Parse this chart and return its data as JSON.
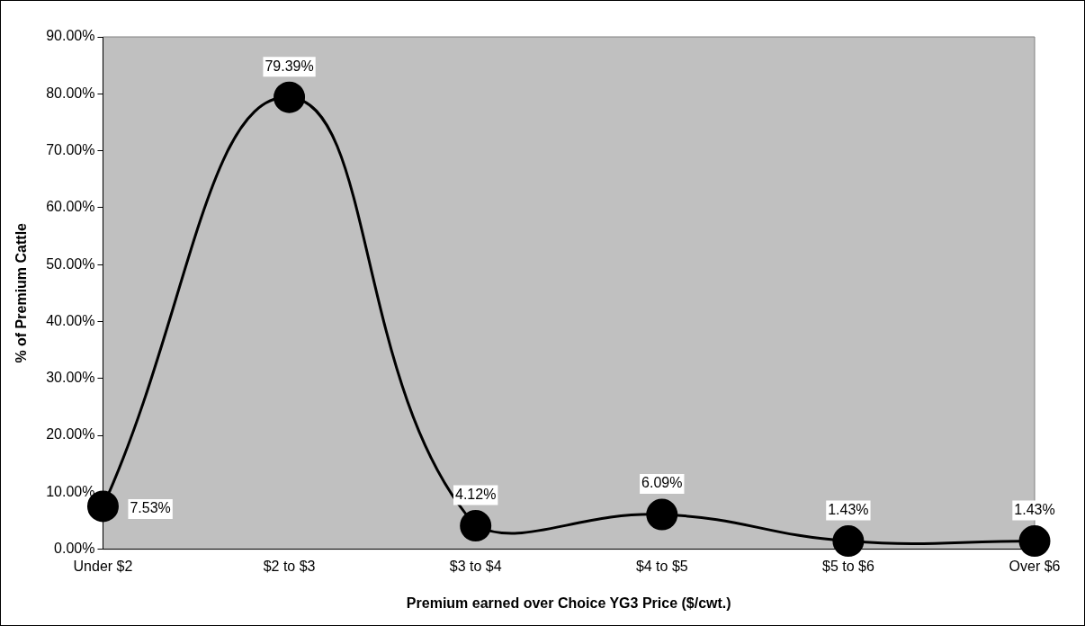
{
  "chart_data": {
    "type": "line",
    "xlabel": "Premium earned over Choice YG3 Price ($/cwt.)",
    "ylabel": "% of Premium Cattle",
    "categories": [
      "Under $2",
      "$2 to $3",
      "$3 to $4",
      "$4 to $5",
      "$5 to $6",
      "Over $6"
    ],
    "series": [
      {
        "color": "#000000",
        "values": [
          7.53,
          79.39,
          4.12,
          6.09,
          1.43,
          1.43
        ]
      }
    ],
    "value_labels": [
      "7.53%",
      "79.39%",
      "4.12%",
      "6.09%",
      "1.43%",
      "1.43%"
    ],
    "ylim": [
      0,
      90
    ],
    "yticks": [
      {
        "value": 0,
        "label": "0.00%"
      },
      {
        "value": 10,
        "label": "10.00%"
      },
      {
        "value": 20,
        "label": "20.00%"
      },
      {
        "value": 30,
        "label": "30.00%"
      },
      {
        "value": 40,
        "label": "40.00%"
      },
      {
        "value": 50,
        "label": "50.00%"
      },
      {
        "value": 60,
        "label": "60.00%"
      },
      {
        "value": 70,
        "label": "70.00%"
      },
      {
        "value": 80,
        "label": "80.00%"
      },
      {
        "value": 90,
        "label": "90.00%"
      }
    ],
    "grid": false,
    "legend": false,
    "marker": "circle",
    "line_style": "solid"
  }
}
